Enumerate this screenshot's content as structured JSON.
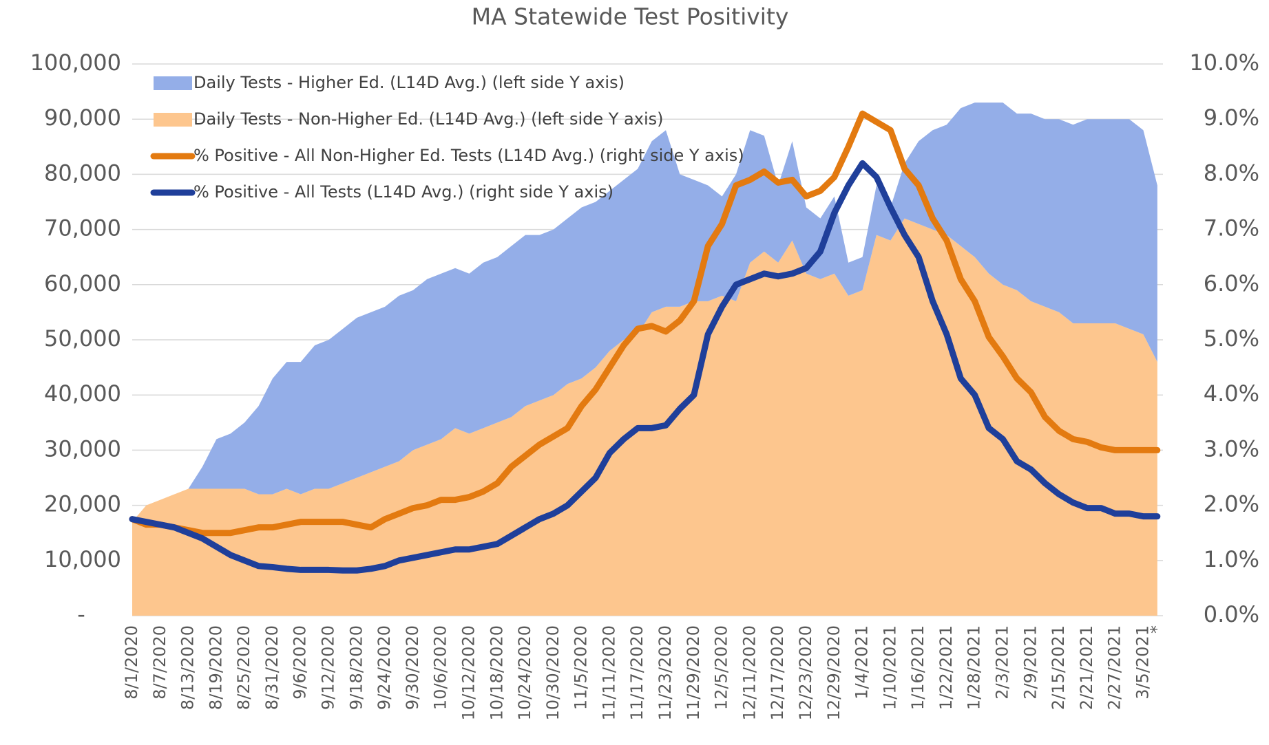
{
  "chart_data": {
    "type": "area",
    "title": "MA Statewide Test Positivity",
    "categories": [
      "8/1/2020",
      null,
      "8/7/2020",
      null,
      "8/13/2020",
      null,
      "8/19/2020",
      null,
      "8/25/2020",
      null,
      "8/31/2020",
      null,
      "9/6/2020",
      null,
      "9/12/2020",
      null,
      "9/18/2020",
      null,
      "9/24/2020",
      null,
      "9/30/2020",
      null,
      "10/6/2020",
      null,
      "10/12/2020",
      null,
      "10/18/2020",
      null,
      "10/24/2020",
      null,
      "10/30/2020",
      null,
      "11/5/2020",
      null,
      "11/11/2020",
      null,
      "11/17/2020",
      null,
      "11/23/2020",
      null,
      "11/29/2020",
      null,
      "12/5/2020",
      null,
      "12/11/2020",
      null,
      "12/17/2020",
      null,
      "12/23/2020",
      null,
      "12/29/2020",
      null,
      "1/4/2021",
      null,
      "1/10/2021",
      null,
      "1/16/2021",
      null,
      "1/22/2021",
      null,
      "1/28/2021",
      null,
      "2/3/2021",
      null,
      "2/9/2021",
      null,
      "2/15/2021",
      null,
      "2/21/2021",
      null,
      "2/27/2021",
      null,
      "3/5/2021",
      "*"
    ],
    "series": [
      {
        "name": "Daily Tests - Higher Ed. (L14D Avg.) (left side Y axis)",
        "type": "area",
        "color": "#94aee8",
        "values": [
          0,
          0,
          0,
          0,
          0,
          4000,
          9000,
          10000,
          12000,
          16000,
          21000,
          23000,
          24000,
          26000,
          27000,
          28000,
          29000,
          29000,
          29000,
          30000,
          29000,
          30000,
          30000,
          29000,
          29000,
          30000,
          30000,
          31000,
          31000,
          30000,
          30000,
          30000,
          31000,
          30000,
          29000,
          29000,
          30000,
          31000,
          32000,
          24000,
          22000,
          21000,
          18000,
          23000,
          24000,
          21000,
          14000,
          18000,
          12000,
          11000,
          14000,
          6000,
          6000,
          9000,
          6000,
          10000,
          15000,
          18000,
          20000,
          25000,
          28000,
          31000,
          33000,
          32000,
          34000,
          34000,
          35000,
          36000,
          37000,
          37000,
          37000,
          38000,
          37000,
          32000
        ]
      },
      {
        "name": "Daily Tests - Non-Higher Ed. (L14D Avg.) (left side Y axis)",
        "type": "area",
        "color": "#fdc68e",
        "values": [
          17000,
          20000,
          21000,
          22000,
          23000,
          23000,
          23000,
          23000,
          23000,
          22000,
          22000,
          23000,
          22000,
          23000,
          23000,
          24000,
          25000,
          26000,
          27000,
          28000,
          30000,
          31000,
          32000,
          34000,
          33000,
          34000,
          35000,
          36000,
          38000,
          39000,
          40000,
          42000,
          43000,
          45000,
          48000,
          50000,
          51000,
          55000,
          56000,
          56000,
          57000,
          57000,
          58000,
          57000,
          64000,
          66000,
          64000,
          68000,
          62000,
          61000,
          62000,
          58000,
          59000,
          69000,
          68000,
          72000,
          71000,
          70000,
          69000,
          67000,
          65000,
          62000,
          60000,
          59000,
          57000,
          56000,
          55000,
          53000,
          53000,
          53000,
          53000,
          52000,
          51000,
          46000
        ]
      },
      {
        "name": "% Positive - All Non-Higher Ed. Tests (L14D Avg.) (right side Y axis)",
        "type": "line",
        "axis": "y2",
        "color": "#e37a10",
        "values": [
          1.75,
          1.65,
          1.65,
          1.6,
          1.55,
          1.5,
          1.5,
          1.5,
          1.55,
          1.6,
          1.6,
          1.65,
          1.7,
          1.7,
          1.7,
          1.7,
          1.65,
          1.6,
          1.75,
          1.85,
          1.95,
          2.0,
          2.1,
          2.1,
          2.15,
          2.25,
          2.4,
          2.7,
          2.9,
          3.1,
          3.25,
          3.4,
          3.8,
          4.1,
          4.5,
          4.9,
          5.2,
          5.25,
          5.15,
          5.35,
          5.7,
          6.7,
          7.1,
          7.8,
          7.9,
          8.05,
          7.85,
          7.9,
          7.6,
          7.7,
          7.95,
          8.5,
          9.1,
          8.95,
          8.8,
          8.1,
          7.8,
          7.2,
          6.8,
          6.1,
          5.7,
          5.05,
          4.7,
          4.3,
          4.05,
          3.6,
          3.35,
          3.2,
          3.15,
          3.05,
          3.0,
          3.0,
          3.0,
          3.0
        ]
      },
      {
        "name": "% Positive - All Tests (L14D Avg.) (right side Y axis)",
        "type": "line",
        "axis": "y2",
        "color": "#1f3f9a",
        "values": [
          1.75,
          1.7,
          1.65,
          1.6,
          1.5,
          1.4,
          1.25,
          1.1,
          1.0,
          0.9,
          0.88,
          0.85,
          0.83,
          0.83,
          0.83,
          0.82,
          0.82,
          0.85,
          0.9,
          1.0,
          1.05,
          1.1,
          1.15,
          1.2,
          1.2,
          1.25,
          1.3,
          1.45,
          1.6,
          1.75,
          1.85,
          2.0,
          2.25,
          2.5,
          2.95,
          3.2,
          3.4,
          3.4,
          3.45,
          3.75,
          4.0,
          5.1,
          5.6,
          6.0,
          6.1,
          6.2,
          6.15,
          6.2,
          6.3,
          6.6,
          7.3,
          7.8,
          8.2,
          7.95,
          7.4,
          6.9,
          6.5,
          5.7,
          5.1,
          4.3,
          4.0,
          3.4,
          3.2,
          2.8,
          2.65,
          2.4,
          2.2,
          2.05,
          1.95,
          1.95,
          1.85,
          1.85,
          1.8,
          1.8
        ]
      }
    ],
    "ylim": [
      0,
      100000
    ],
    "yticks": [
      {
        "value": 0,
        "label": "-"
      },
      {
        "value": 10000,
        "label": "10,000"
      },
      {
        "value": 20000,
        "label": "20,000"
      },
      {
        "value": 30000,
        "label": "30,000"
      },
      {
        "value": 40000,
        "label": "40,000"
      },
      {
        "value": 50000,
        "label": "50,000"
      },
      {
        "value": 60000,
        "label": "60,000"
      },
      {
        "value": 70000,
        "label": "70,000"
      },
      {
        "value": 80000,
        "label": "80,000"
      },
      {
        "value": 90000,
        "label": "90,000"
      },
      {
        "value": 100000,
        "label": "100,000"
      }
    ],
    "y2lim": [
      0,
      10
    ],
    "y2ticks": [
      {
        "value": 0,
        "label": "0.0%"
      },
      {
        "value": 1,
        "label": "1.0%"
      },
      {
        "value": 2,
        "label": "2.0%"
      },
      {
        "value": 3,
        "label": "3.0%"
      },
      {
        "value": 4,
        "label": "4.0%"
      },
      {
        "value": 5,
        "label": "5.0%"
      },
      {
        "value": 6,
        "label": "6.0%"
      },
      {
        "value": 7,
        "label": "7.0%"
      },
      {
        "value": 8,
        "label": "8.0%"
      },
      {
        "value": 9,
        "label": "9.0%"
      },
      {
        "value": 10,
        "label": "10.0%"
      }
    ],
    "grid": true,
    "legend": "top-left"
  }
}
